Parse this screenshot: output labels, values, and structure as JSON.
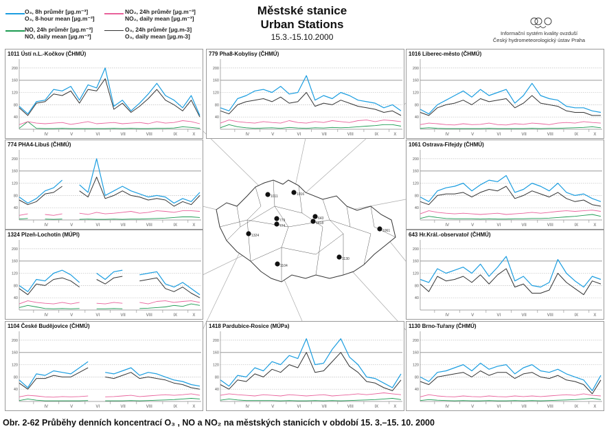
{
  "header": {
    "title_cz": "Městské stanice",
    "title_en": "Urban Stations",
    "period": "15.3.-15.10.2000"
  },
  "org": {
    "line1": "Informační systém kvality ovzduší",
    "line2": "Český hydrometeorologický ústav Praha"
  },
  "legend": [
    {
      "cz": "O₃, 8h průměr [µg.m⁻³]",
      "en": "O₃, 8-hour mean [µg.m⁻³]",
      "color": "#1a9de0"
    },
    {
      "cz": "NO₂, 24h průměr [µg.m⁻³]",
      "en": "NO₂, daily mean [µg.m⁻³]",
      "color": "#e8609a"
    },
    {
      "cz": "NO, 24h průměr [µg.m⁻³]",
      "en": "NO, daily mean [µg.m⁻³]",
      "color": "#1a9a50"
    },
    {
      "cz": "O₃, 24h průměr [µg.m-3]",
      "en": "O₃, daily mean [µg.m-3]",
      "color": "#333333"
    }
  ],
  "caption": "Obr. 2-62  Průběhy denních koncentrací O₃ , NO a NO₂ na městských stanicích v období 15. 3.–15. 10. 2000",
  "map_labels": [
    "1011",
    "1016",
    "779",
    "774",
    "643",
    "1418",
    "1061",
    "1324",
    "1104",
    "1130"
  ],
  "chart_data": {
    "type": "line",
    "ylim": [
      0,
      220
    ],
    "yticks": [
      40,
      80,
      120,
      160,
      200
    ],
    "months": [
      "IV",
      "V",
      "VI",
      "VII",
      "VIII",
      "IX",
      "X"
    ],
    "x_note": "22 samples evenly spaced 15.3.–15.10.2000",
    "series_names": [
      "o3_8h",
      "o3_daily",
      "no2",
      "no"
    ],
    "panels": [
      {
        "title": "1011 Ústí n.L.-Kočkov (ČHMÚ)",
        "o3_8h": [
          75,
          50,
          90,
          95,
          130,
          125,
          140,
          95,
          145,
          135,
          200,
          75,
          95,
          60,
          85,
          115,
          150,
          110,
          95,
          70,
          110,
          45
        ],
        "o3_daily": [
          70,
          45,
          85,
          90,
          115,
          110,
          125,
          85,
          130,
          125,
          165,
          65,
          85,
          55,
          75,
          100,
          130,
          95,
          80,
          60,
          95,
          40
        ],
        "no2": [
          15,
          25,
          20,
          18,
          20,
          22,
          16,
          20,
          25,
          18,
          20,
          22,
          18,
          20,
          22,
          18,
          25,
          20,
          22,
          28,
          25,
          18
        ],
        "no": [
          3,
          25,
          3,
          2,
          2,
          3,
          2,
          2,
          2,
          2,
          2,
          3,
          2,
          3,
          2,
          2,
          3,
          3,
          4,
          8,
          6,
          3
        ]
      },
      {
        "title": "779 Pha8-Kobylisy (ČHMÚ)",
        "o3_8h": [
          70,
          60,
          100,
          110,
          125,
          130,
          120,
          140,
          115,
          120,
          175,
          95,
          110,
          100,
          120,
          110,
          95,
          90,
          85,
          70,
          80,
          60
        ],
        "o3_daily": [
          60,
          50,
          80,
          90,
          95,
          100,
          90,
          105,
          85,
          90,
          120,
          75,
          85,
          80,
          95,
          85,
          75,
          70,
          65,
          55,
          60,
          45
        ],
        "no2": [
          20,
          30,
          25,
          22,
          20,
          25,
          22,
          20,
          28,
          22,
          20,
          25,
          22,
          28,
          25,
          22,
          28,
          30,
          25,
          30,
          28,
          25
        ],
        "no": [
          5,
          15,
          8,
          5,
          3,
          4,
          5,
          3,
          6,
          4,
          3,
          5,
          4,
          6,
          5,
          6,
          8,
          10,
          12,
          15,
          15,
          10
        ]
      },
      {
        "title": "1016 Liberec-město (ČHMÚ)",
        "o3_8h": [
          65,
          50,
          80,
          95,
          110,
          125,
          105,
          130,
          110,
          120,
          130,
          85,
          110,
          150,
          110,
          100,
          95,
          75,
          70,
          70,
          60,
          55
        ],
        "o3_daily": [
          55,
          45,
          70,
          80,
          85,
          95,
          80,
          100,
          90,
          95,
          100,
          70,
          85,
          110,
          85,
          80,
          75,
          60,
          55,
          55,
          45,
          45
        ],
        "no2": [
          15,
          20,
          18,
          15,
          14,
          18,
          15,
          16,
          20,
          15,
          14,
          18,
          16,
          20,
          18,
          15,
          20,
          22,
          20,
          25,
          22,
          20
        ],
        "no": [
          3,
          5,
          3,
          2,
          2,
          2,
          2,
          2,
          3,
          2,
          2,
          2,
          2,
          3,
          2,
          3,
          3,
          4,
          5,
          6,
          8,
          5
        ]
      },
      {
        "title": "774 PHA4-Libuš (ČHMÚ)",
        "o3_8h": [
          75,
          55,
          70,
          95,
          105,
          130,
          null,
          115,
          90,
          200,
          80,
          95,
          110,
          95,
          85,
          75,
          80,
          75,
          55,
          70,
          60,
          90
        ],
        "o3_daily": [
          65,
          50,
          60,
          85,
          90,
          110,
          null,
          95,
          75,
          140,
          70,
          80,
          95,
          80,
          75,
          65,
          70,
          65,
          45,
          60,
          50,
          80
        ],
        "no2": [
          15,
          20,
          null,
          18,
          15,
          20,
          null,
          22,
          18,
          25,
          20,
          22,
          25,
          28,
          22,
          25,
          30,
          28,
          25,
          30,
          30,
          28
        ],
        "no": [
          3,
          5,
          null,
          3,
          2,
          3,
          null,
          2,
          3,
          2,
          2,
          3,
          2,
          3,
          3,
          4,
          5,
          6,
          8,
          10,
          10,
          8
        ]
      },
      {
        "title": "1061 Ostrava-Fifejdy (ČHMÚ)",
        "o3_8h": [
          75,
          60,
          95,
          105,
          110,
          120,
          95,
          115,
          130,
          125,
          145,
          90,
          100,
          120,
          110,
          95,
          120,
          90,
          80,
          85,
          70,
          60
        ],
        "o3_daily": [
          60,
          50,
          80,
          85,
          85,
          90,
          75,
          90,
          100,
          95,
          110,
          70,
          80,
          95,
          85,
          75,
          90,
          70,
          60,
          65,
          50,
          45
        ],
        "no2": [
          20,
          30,
          25,
          22,
          20,
          22,
          20,
          18,
          20,
          22,
          18,
          20,
          22,
          25,
          22,
          25,
          28,
          30,
          28,
          30,
          32,
          28
        ],
        "no": [
          5,
          12,
          8,
          5,
          4,
          4,
          4,
          3,
          4,
          3,
          3,
          4,
          4,
          5,
          5,
          6,
          8,
          10,
          12,
          15,
          18,
          12
        ]
      },
      {
        "title": "1324 Plzeň-Lochotín (MÚPl)",
        "o3_8h": [
          80,
          60,
          100,
          95,
          120,
          130,
          115,
          90,
          null,
          120,
          100,
          125,
          130,
          null,
          115,
          120,
          125,
          85,
          75,
          90,
          70,
          50
        ],
        "o3_daily": [
          70,
          50,
          85,
          80,
          100,
          105,
          95,
          75,
          null,
          100,
          85,
          105,
          110,
          null,
          95,
          100,
          105,
          70,
          60,
          75,
          55,
          40
        ],
        "no2": [
          20,
          30,
          25,
          22,
          20,
          25,
          20,
          25,
          null,
          22,
          20,
          25,
          22,
          null,
          25,
          20,
          28,
          30,
          25,
          28,
          30,
          25
        ],
        "no": [
          8,
          15,
          10,
          5,
          4,
          5,
          4,
          5,
          null,
          4,
          4,
          5,
          4,
          null,
          5,
          6,
          8,
          10,
          15,
          12,
          20,
          15
        ]
      },
      {
        "title": "643 Hr.Král.-observatoř (ČHMÚ)",
        "o3_8h": [
          100,
          90,
          135,
          120,
          130,
          140,
          120,
          150,
          110,
          140,
          175,
          95,
          110,
          80,
          75,
          90,
          165,
          120,
          95,
          75,
          110,
          100
        ],
        "o3_daily": [
          85,
          60,
          110,
          95,
          100,
          110,
          90,
          115,
          85,
          115,
          135,
          75,
          85,
          55,
          55,
          65,
          120,
          90,
          70,
          50,
          95,
          85
        ],
        "no2": [],
        "no": []
      },
      {
        "title": "1104 České Budějovice (ČHMÚ)",
        "o3_8h": [
          70,
          45,
          90,
          85,
          100,
          95,
          90,
          110,
          130,
          null,
          95,
          90,
          100,
          110,
          85,
          95,
          90,
          80,
          70,
          65,
          55,
          50
        ],
        "o3_daily": [
          60,
          40,
          75,
          75,
          85,
          80,
          80,
          95,
          110,
          null,
          80,
          75,
          85,
          95,
          75,
          80,
          75,
          70,
          60,
          55,
          45,
          40
        ],
        "no2": [
          15,
          20,
          18,
          15,
          14,
          16,
          15,
          16,
          18,
          null,
          15,
          16,
          18,
          20,
          16,
          18,
          20,
          22,
          20,
          22,
          25,
          20
        ],
        "no": [
          3,
          8,
          4,
          2,
          2,
          2,
          2,
          2,
          3,
          null,
          2,
          2,
          2,
          3,
          2,
          3,
          4,
          5,
          6,
          8,
          10,
          8
        ]
      },
      {
        "title": "1418 Pardubice-Rosice (MÚPa)",
        "o3_8h": [
          70,
          50,
          85,
          80,
          110,
          100,
          130,
          120,
          150,
          140,
          205,
          120,
          125,
          170,
          205,
          145,
          120,
          80,
          75,
          60,
          45,
          90
        ],
        "o3_daily": [
          55,
          40,
          70,
          65,
          90,
          80,
          105,
          95,
          120,
          110,
          160,
          95,
          100,
          130,
          160,
          115,
          95,
          65,
          60,
          45,
          35,
          70
        ],
        "no2": [
          20,
          25,
          22,
          20,
          18,
          22,
          20,
          18,
          22,
          20,
          18,
          20,
          22,
          18,
          20,
          22,
          25,
          22,
          25,
          28,
          25,
          22
        ],
        "no": [
          4,
          8,
          5,
          3,
          3,
          3,
          3,
          2,
          3,
          2,
          2,
          3,
          2,
          3,
          2,
          3,
          4,
          5,
          6,
          8,
          10,
          6
        ]
      },
      {
        "title": "1130 Brno-Tuřany (ČHMÚ)",
        "o3_8h": [
          80,
          65,
          95,
          100,
          110,
          120,
          100,
          125,
          105,
          115,
          120,
          90,
          110,
          120,
          100,
          95,
          105,
          90,
          80,
          70,
          35,
          85
        ],
        "o3_daily": [
          65,
          55,
          80,
          85,
          90,
          95,
          80,
          100,
          85,
          95,
          95,
          75,
          90,
          95,
          80,
          75,
          85,
          70,
          65,
          55,
          25,
          70
        ],
        "no2": [
          15,
          22,
          18,
          16,
          15,
          18,
          16,
          15,
          18,
          16,
          15,
          18,
          16,
          18,
          16,
          18,
          20,
          22,
          20,
          25,
          20,
          18
        ],
        "no": [
          3,
          6,
          4,
          3,
          2,
          3,
          2,
          2,
          3,
          2,
          2,
          3,
          2,
          3,
          2,
          3,
          4,
          5,
          6,
          8,
          10,
          6
        ]
      }
    ]
  }
}
